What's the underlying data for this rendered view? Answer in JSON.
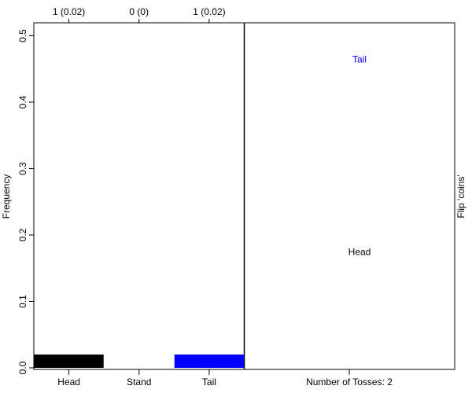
{
  "chart_data": {
    "type": "bar",
    "categories": [
      "Head",
      "Stand",
      "Tail"
    ],
    "values": [
      0.02,
      0,
      0.02
    ],
    "top_labels": [
      "1 (0.02)",
      "0 (0)",
      "1 (0.02)"
    ],
    "bar_colors": [
      "#000000",
      "#ffffff",
      "#0000ff"
    ],
    "ylabel": "Frequency",
    "yticks": [
      "0.0",
      "0.1",
      "0.2",
      "0.3",
      "0.4",
      "0.5"
    ],
    "ylim": [
      0,
      0.52
    ],
    "grid": false
  },
  "right_panel": {
    "xlabel": "Number of Tosses: 2",
    "side_label": "Flip 'coins'",
    "outcomes": [
      {
        "text": "Tail",
        "color": "#0000ff",
        "level": 0.46
      },
      {
        "text": "Head",
        "color": "#000000",
        "level": 0.17
      }
    ]
  }
}
